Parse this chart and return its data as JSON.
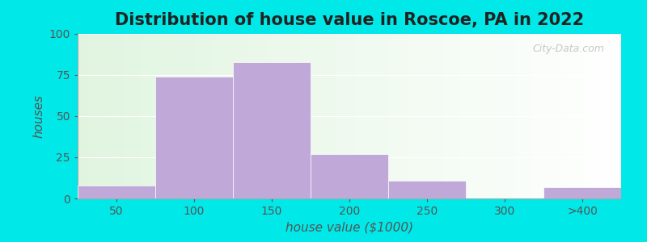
{
  "categories": [
    "50",
    "100",
    "150",
    "200",
    "250",
    "300",
    ">400"
  ],
  "values": [
    8,
    74,
    83,
    27,
    11,
    0,
    7
  ],
  "bar_color": "#c0a8d8",
  "bar_edgecolor": "#c0a8d8",
  "title": "Distribution of house value in Roscoe, PA in 2022",
  "xlabel": "house value ($1000)",
  "ylabel": "houses",
  "ylim": [
    0,
    100
  ],
  "yticks": [
    0,
    25,
    50,
    75,
    100
  ],
  "title_fontsize": 15,
  "label_fontsize": 11,
  "tick_fontsize": 10,
  "outer_bg": "#00e8e8",
  "watermark": "City-Data.com",
  "bar_width": 1.0
}
